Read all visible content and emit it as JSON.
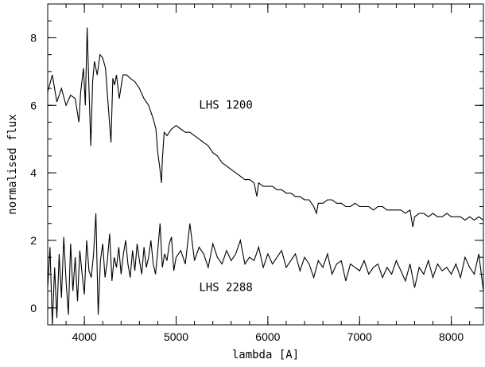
{
  "chart_data": {
    "type": "line",
    "title": "",
    "xlabel": "lambda [A]",
    "ylabel": "normalised flux",
    "xlim": [
      3600,
      8350
    ],
    "ylim": [
      -0.5,
      9.0
    ],
    "x_ticks": [
      4000,
      5000,
      6000,
      7000,
      8000
    ],
    "x_tick_labels": [
      "4000",
      "5000",
      "6000",
      "7000",
      "8000"
    ],
    "y_ticks": [
      0,
      2,
      4,
      6,
      8
    ],
    "y_tick_labels": [
      "0",
      "2",
      "4",
      "6",
      "8"
    ],
    "x_minor_step": 200,
    "y_minor_step": 0.5,
    "grid": false,
    "legend": "none",
    "annotations": [
      {
        "text": "LHS 1200",
        "x": 5250,
        "y": 5.9
      },
      {
        "text": "LHS 2288",
        "x": 5250,
        "y": 0.5
      }
    ],
    "series": [
      {
        "label": "LHS 1200",
        "x": [
          3600,
          3650,
          3700,
          3750,
          3800,
          3850,
          3900,
          3940,
          3960,
          3990,
          4010,
          4030,
          4050,
          4070,
          4090,
          4110,
          4140,
          4170,
          4200,
          4230,
          4260,
          4290,
          4310,
          4330,
          4350,
          4380,
          4420,
          4460,
          4500,
          4550,
          4600,
          4650,
          4700,
          4750,
          4780,
          4800,
          4820,
          4840,
          4850,
          4870,
          4900,
          4950,
          5000,
          5050,
          5100,
          5150,
          5200,
          5250,
          5300,
          5350,
          5400,
          5450,
          5500,
          5550,
          5600,
          5650,
          5700,
          5750,
          5800,
          5850,
          5880,
          5900,
          5950,
          6000,
          6050,
          6100,
          6150,
          6200,
          6250,
          6300,
          6350,
          6400,
          6450,
          6500,
          6530,
          6550,
          6600,
          6650,
          6700,
          6750,
          6800,
          6850,
          6900,
          6950,
          7000,
          7050,
          7100,
          7150,
          7200,
          7250,
          7300,
          7350,
          7400,
          7450,
          7500,
          7550,
          7580,
          7600,
          7650,
          7700,
          7750,
          7800,
          7850,
          7900,
          7950,
          8000,
          8050,
          8100,
          8150,
          8200,
          8250,
          8300,
          8350
        ],
        "y": [
          6.4,
          6.9,
          6.1,
          6.5,
          6.0,
          6.3,
          6.2,
          5.5,
          6.4,
          7.1,
          6.0,
          8.3,
          6.5,
          4.8,
          6.7,
          7.3,
          6.9,
          7.5,
          7.4,
          7.1,
          6.0,
          4.9,
          6.8,
          6.6,
          6.9,
          6.2,
          6.9,
          6.9,
          6.8,
          6.7,
          6.5,
          6.2,
          6.0,
          5.6,
          5.3,
          4.6,
          4.2,
          3.7,
          4.4,
          5.2,
          5.1,
          5.3,
          5.4,
          5.3,
          5.2,
          5.2,
          5.1,
          5.0,
          4.9,
          4.8,
          4.6,
          4.5,
          4.3,
          4.2,
          4.1,
          4.0,
          3.9,
          3.8,
          3.8,
          3.7,
          3.3,
          3.7,
          3.6,
          3.6,
          3.6,
          3.5,
          3.5,
          3.4,
          3.4,
          3.3,
          3.3,
          3.2,
          3.2,
          3.0,
          2.8,
          3.1,
          3.1,
          3.2,
          3.2,
          3.1,
          3.1,
          3.0,
          3.0,
          3.1,
          3.0,
          3.0,
          3.0,
          2.9,
          3.0,
          3.0,
          2.9,
          2.9,
          2.9,
          2.9,
          2.8,
          2.9,
          2.4,
          2.7,
          2.8,
          2.8,
          2.7,
          2.8,
          2.7,
          2.7,
          2.8,
          2.7,
          2.7,
          2.7,
          2.6,
          2.7,
          2.6,
          2.7,
          2.6
        ]
      },
      {
        "label": "LHS 2288",
        "x": [
          3600,
          3625,
          3650,
          3675,
          3700,
          3725,
          3750,
          3775,
          3800,
          3825,
          3850,
          3875,
          3900,
          3925,
          3950,
          3975,
          4000,
          4025,
          4050,
          4075,
          4100,
          4125,
          4150,
          4175,
          4200,
          4225,
          4250,
          4275,
          4300,
          4325,
          4350,
          4375,
          4400,
          4425,
          4450,
          4475,
          4500,
          4525,
          4550,
          4575,
          4600,
          4625,
          4650,
          4675,
          4700,
          4725,
          4750,
          4775,
          4800,
          4825,
          4850,
          4875,
          4900,
          4925,
          4950,
          4975,
          5000,
          5050,
          5100,
          5150,
          5200,
          5250,
          5300,
          5350,
          5400,
          5450,
          5500,
          5550,
          5600,
          5650,
          5700,
          5750,
          5800,
          5850,
          5900,
          5950,
          6000,
          6050,
          6100,
          6150,
          6200,
          6250,
          6300,
          6350,
          6400,
          6450,
          6500,
          6550,
          6600,
          6650,
          6700,
          6750,
          6800,
          6850,
          6900,
          6950,
          7000,
          7050,
          7100,
          7150,
          7200,
          7250,
          7300,
          7350,
          7400,
          7450,
          7500,
          7550,
          7600,
          7650,
          7700,
          7750,
          7800,
          7850,
          7900,
          7950,
          8000,
          8050,
          8100,
          8150,
          8200,
          8250,
          8300,
          8350
        ],
        "y": [
          0.6,
          1.8,
          -0.5,
          1.2,
          -0.3,
          1.6,
          0.3,
          2.1,
          0.8,
          -0.2,
          1.9,
          0.5,
          1.5,
          0.2,
          1.7,
          1.0,
          0.4,
          2.0,
          1.1,
          0.9,
          1.6,
          2.8,
          -0.2,
          1.4,
          1.9,
          0.9,
          1.4,
          2.2,
          0.8,
          1.5,
          1.2,
          1.8,
          1.0,
          1.6,
          2.0,
          1.3,
          0.9,
          1.7,
          1.1,
          1.9,
          1.4,
          1.0,
          1.8,
          1.2,
          1.5,
          2.0,
          1.3,
          1.0,
          1.7,
          2.5,
          1.2,
          1.6,
          1.4,
          1.9,
          2.1,
          1.1,
          1.5,
          1.7,
          1.3,
          2.5,
          1.4,
          1.8,
          1.6,
          1.2,
          1.9,
          1.5,
          1.3,
          1.7,
          1.4,
          1.6,
          2.0,
          1.3,
          1.5,
          1.4,
          1.8,
          1.2,
          1.6,
          1.3,
          1.5,
          1.7,
          1.2,
          1.4,
          1.6,
          1.1,
          1.5,
          1.3,
          0.9,
          1.4,
          1.2,
          1.6,
          1.0,
          1.3,
          1.4,
          0.8,
          1.3,
          1.2,
          1.1,
          1.4,
          1.0,
          1.2,
          1.3,
          0.9,
          1.2,
          1.0,
          1.4,
          1.1,
          0.8,
          1.3,
          0.6,
          1.2,
          1.0,
          1.4,
          0.9,
          1.3,
          1.1,
          1.2,
          1.0,
          1.3,
          0.9,
          1.5,
          1.2,
          1.0,
          1.6,
          0.5
        ]
      }
    ]
  }
}
